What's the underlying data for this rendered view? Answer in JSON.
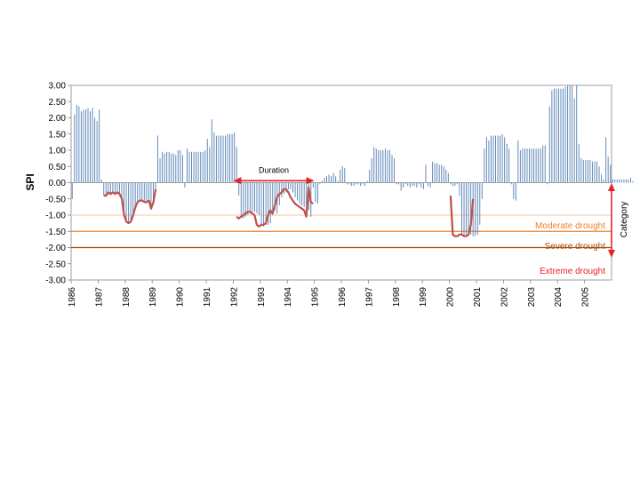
{
  "chart_data": {
    "type": "bar",
    "ylabel": "SPI",
    "ylim": [
      -3,
      3
    ],
    "yticks": [
      "3.00",
      "2.50",
      "2.00",
      "1.50",
      "1.00",
      "0.50",
      "0.00",
      "-0.50",
      "-1.00",
      "-1.50",
      "-2.00",
      "-2.50",
      "-3.00"
    ],
    "xlim": [
      1986,
      2006
    ],
    "xticks": [
      "1986",
      "1987",
      "1988",
      "1989",
      "1990",
      "1991",
      "1992",
      "1993",
      "1994",
      "1995",
      "1996",
      "1997",
      "1998",
      "1999",
      "2000",
      "2001",
      "2002",
      "2003",
      "2004",
      "2005"
    ],
    "grid": false,
    "series": [
      {
        "x_start": 1986,
        "step": 0.08333,
        "values": [
          -0.5,
          2.1,
          2.4,
          2.35,
          2.2,
          2.25,
          2.25,
          2.3,
          2.2,
          2.3,
          2.0,
          1.9,
          2.25,
          0.1,
          -0.4,
          -0.4,
          -0.3,
          -0.35,
          -0.3,
          -0.35,
          -0.3,
          -0.35,
          -0.5,
          -1.0,
          -1.2,
          -1.25,
          -1.2,
          -1.0,
          -0.75,
          -0.6,
          -0.55,
          -0.55,
          -0.6,
          -0.6,
          -0.55,
          -0.8,
          -0.6,
          -0.2,
          1.45,
          0.75,
          0.95,
          0.9,
          0.95,
          0.95,
          0.9,
          0.9,
          0.85,
          1.0,
          1.0,
          0.85,
          -0.15,
          1.05,
          0.95,
          0.95,
          0.95,
          0.95,
          0.95,
          0.95,
          0.95,
          1.0,
          1.35,
          1.1,
          1.95,
          1.55,
          1.45,
          1.45,
          1.45,
          1.45,
          1.45,
          1.5,
          1.5,
          1.5,
          1.55,
          1.1,
          -0.4,
          -1.05,
          -1.1,
          -1.05,
          -1.0,
          -0.95,
          -0.9,
          -0.9,
          -0.95,
          -1.0,
          -1.3,
          -1.35,
          -1.3,
          -1.3,
          -1.25,
          -1.0,
          -0.85,
          -0.95,
          -0.7,
          -0.45,
          -0.35,
          -0.3,
          -0.2,
          -0.2,
          -0.3,
          -0.45,
          -0.55,
          -0.65,
          -0.7,
          -0.75,
          -0.8,
          -0.85,
          -1.05,
          -0.15,
          -0.6,
          -0.65,
          -0.05,
          0.05,
          0.15,
          0.2,
          0.25,
          0.2,
          0.3,
          0.2,
          0.05,
          0.4,
          0.5,
          0.45,
          -0.05,
          -0.05,
          -0.1,
          -0.1,
          -0.05,
          -0.05,
          -0.1,
          -0.05,
          -0.1,
          0.05,
          0.4,
          0.75,
          1.1,
          1.05,
          1.0,
          1.0,
          1.0,
          1.05,
          1.0,
          1.0,
          0.85,
          0.75,
          -0.05,
          -0.05,
          -0.25,
          -0.15,
          -0.05,
          -0.1,
          -0.15,
          -0.1,
          -0.1,
          -0.15,
          -0.05,
          -0.15,
          -0.2,
          0.55,
          -0.1,
          -0.15,
          0.65,
          0.6,
          0.6,
          0.55,
          0.55,
          0.5,
          0.4,
          0.3,
          -0.05,
          -0.1,
          -0.1,
          -0.05,
          -0.4,
          -1.6,
          -1.65,
          -1.65,
          -1.6,
          -1.6,
          -1.65,
          -1.65,
          -1.6,
          -1.3,
          -0.5,
          1.05,
          1.4,
          1.3,
          1.45,
          1.45,
          1.45,
          1.45,
          1.45,
          1.5,
          1.4,
          1.2,
          1.05,
          -0.05,
          -0.5,
          -0.55,
          1.3,
          1.0,
          1.05,
          1.05,
          1.05,
          1.05,
          1.05,
          1.05,
          1.05,
          1.05,
          1.05,
          1.15,
          1.15,
          -0.05,
          2.35,
          2.85,
          2.9,
          2.9,
          2.9,
          2.9,
          2.9,
          2.95,
          3.0,
          3.0,
          3.0,
          2.6,
          3.0,
          1.2,
          0.75,
          0.7,
          0.7,
          0.7,
          0.7,
          0.65,
          0.65,
          0.65,
          0.5,
          0.25,
          0.1,
          1.4,
          0.8,
          0.55,
          0.1,
          0.1,
          0.1,
          0.1,
          0.1,
          0.1,
          0.1,
          0.1,
          0.15,
          0.05
        ]
      }
    ],
    "drought_runs": [
      {
        "start": 1987.17,
        "values": [
          -0.4,
          -0.4,
          -0.3,
          -0.35,
          -0.3,
          -0.35,
          -0.3,
          -0.35,
          -0.5,
          -1.0,
          -1.2,
          -1.25,
          -1.2,
          -1.0,
          -0.75,
          -0.6,
          -0.55,
          -0.55,
          -0.6,
          -0.6,
          -0.55,
          -0.8,
          -0.6,
          -0.2
        ]
      },
      {
        "start": 1992.08,
        "values": [
          -1.05,
          -1.1,
          -1.05,
          -1.0,
          -0.95,
          -0.9,
          -0.9,
          -0.95,
          -1.0,
          -1.3,
          -1.35,
          -1.3,
          -1.3,
          -1.25,
          -1.0,
          -0.85,
          -0.95,
          -0.7,
          -0.45,
          -0.35,
          -0.3,
          -0.2,
          -0.2,
          -0.3,
          -0.45,
          -0.55,
          -0.65,
          -0.7,
          -0.75,
          -0.8,
          -0.85,
          -1.05,
          -0.15,
          -0.6,
          -0.65
        ]
      },
      {
        "start": 2000.0,
        "values": [
          -0.4,
          -1.6,
          -1.65,
          -1.65,
          -1.6,
          -1.6,
          -1.65,
          -1.65,
          -1.6,
          -1.3,
          -0.5
        ]
      }
    ],
    "thresholds": [
      {
        "value": -1.0,
        "color": "#f7d3b5"
      },
      {
        "value": -1.5,
        "color": "#e8822e"
      },
      {
        "value": -2.0,
        "color": "#a84d0b"
      }
    ],
    "annotations": {
      "duration": {
        "label": "Duration",
        "x_start": 1992.0,
        "x_end": 1995.0,
        "y": 0.06
      },
      "category": {
        "label": "Category"
      },
      "moderate": {
        "label": "Moderate drought",
        "color": "#e8822e"
      },
      "severe": {
        "label": "Severe drought",
        "color": "#a84d0b"
      },
      "extreme": {
        "label": "Extreme drought",
        "color": "#e8222a"
      }
    },
    "colors": {
      "bars": "#5b86b8",
      "run_line": "#c0504d",
      "arrows": "#e8222a",
      "axis": "#888888",
      "text": "#000000"
    }
  }
}
